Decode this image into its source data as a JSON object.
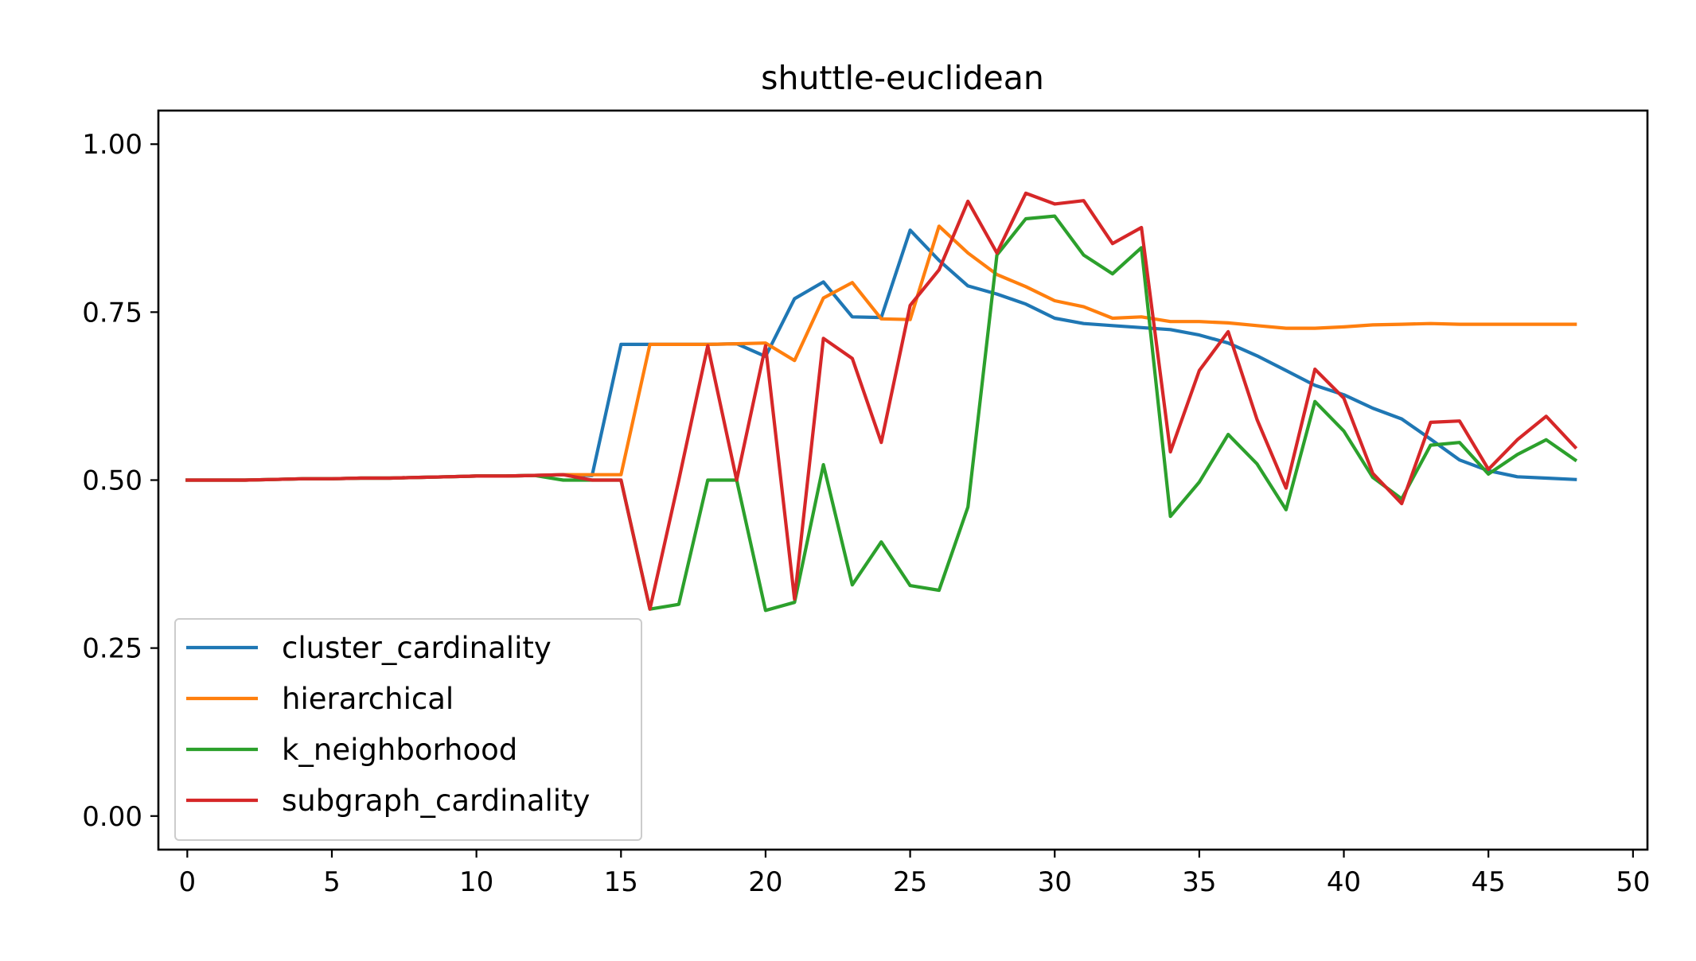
{
  "chart_data": {
    "type": "line",
    "title": "shuttle-euclidean",
    "xlabel": "",
    "ylabel": "",
    "xlim": [
      -1,
      50.5
    ],
    "ylim": [
      -0.05,
      1.05
    ],
    "xticks": [
      0,
      5,
      10,
      15,
      20,
      25,
      30,
      35,
      40,
      45,
      50
    ],
    "xtick_labels": [
      "0",
      "5",
      "10",
      "15",
      "20",
      "25",
      "30",
      "35",
      "40",
      "45",
      "50"
    ],
    "yticks": [
      0.0,
      0.25,
      0.5,
      0.75,
      1.0
    ],
    "ytick_labels": [
      "0.00",
      "0.25",
      "0.50",
      "0.75",
      "1.00"
    ],
    "grid": false,
    "legend_position": "lower-left",
    "x": [
      0,
      1,
      2,
      3,
      4,
      5,
      6,
      7,
      8,
      9,
      10,
      11,
      12,
      13,
      14,
      15,
      16,
      17,
      18,
      19,
      20,
      21,
      22,
      23,
      24,
      25,
      26,
      27,
      28,
      29,
      30,
      31,
      32,
      33,
      34,
      35,
      36,
      37,
      38,
      39,
      40,
      41,
      42,
      43,
      44,
      45,
      46,
      47,
      48
    ],
    "series": [
      {
        "name": "cluster_cardinality",
        "color": "#1f77b4",
        "values": [
          0.5,
          0.5,
          0.5,
          0.501,
          0.502,
          0.502,
          0.503,
          0.503,
          0.504,
          0.505,
          0.506,
          0.506,
          0.507,
          0.508,
          0.507,
          0.702,
          0.702,
          0.702,
          0.702,
          0.703,
          0.684,
          0.77,
          0.795,
          0.743,
          0.742,
          0.872,
          0.827,
          0.789,
          0.777,
          0.762,
          0.741,
          0.733,
          0.73,
          0.727,
          0.724,
          0.716,
          0.704,
          0.685,
          0.663,
          0.641,
          0.627,
          0.607,
          0.591,
          0.561,
          0.53,
          0.514,
          0.505,
          0.503,
          0.501
        ]
      },
      {
        "name": "hierarchical",
        "color": "#ff7f0e",
        "values": [
          0.5,
          0.5,
          0.5,
          0.501,
          0.502,
          0.502,
          0.503,
          0.503,
          0.504,
          0.505,
          0.506,
          0.506,
          0.507,
          0.508,
          0.508,
          0.508,
          0.702,
          0.702,
          0.702,
          0.703,
          0.704,
          0.678,
          0.771,
          0.794,
          0.74,
          0.739,
          0.878,
          0.838,
          0.806,
          0.788,
          0.767,
          0.758,
          0.741,
          0.743,
          0.736,
          0.736,
          0.734,
          0.73,
          0.726,
          0.726,
          0.728,
          0.731,
          0.732,
          0.733,
          0.732,
          0.732,
          0.732,
          0.732,
          0.732
        ]
      },
      {
        "name": "k_neighborhood",
        "color": "#2ca02c",
        "values": [
          0.5,
          0.5,
          0.5,
          0.501,
          0.502,
          0.502,
          0.503,
          0.503,
          0.504,
          0.505,
          0.506,
          0.506,
          0.507,
          0.5,
          0.5,
          0.5,
          0.308,
          0.315,
          0.5,
          0.5,
          0.306,
          0.318,
          0.523,
          0.344,
          0.408,
          0.343,
          0.336,
          0.46,
          0.835,
          0.889,
          0.893,
          0.835,
          0.807,
          0.846,
          0.446,
          0.497,
          0.568,
          0.524,
          0.456,
          0.617,
          0.573,
          0.504,
          0.472,
          0.552,
          0.556,
          0.509,
          0.538,
          0.56,
          0.53
        ]
      },
      {
        "name": "subgraph_cardinality",
        "color": "#d62728",
        "values": [
          0.5,
          0.5,
          0.5,
          0.501,
          0.502,
          0.502,
          0.503,
          0.503,
          0.504,
          0.505,
          0.506,
          0.506,
          0.507,
          0.508,
          0.5,
          0.5,
          0.308,
          0.5,
          0.7,
          0.5,
          0.7,
          0.323,
          0.711,
          0.681,
          0.556,
          0.76,
          0.813,
          0.915,
          0.838,
          0.927,
          0.911,
          0.916,
          0.852,
          0.876,
          0.542,
          0.663,
          0.721,
          0.59,
          0.488,
          0.665,
          0.622,
          0.51,
          0.465,
          0.586,
          0.588,
          0.516,
          0.56,
          0.595,
          0.549
        ]
      }
    ]
  }
}
